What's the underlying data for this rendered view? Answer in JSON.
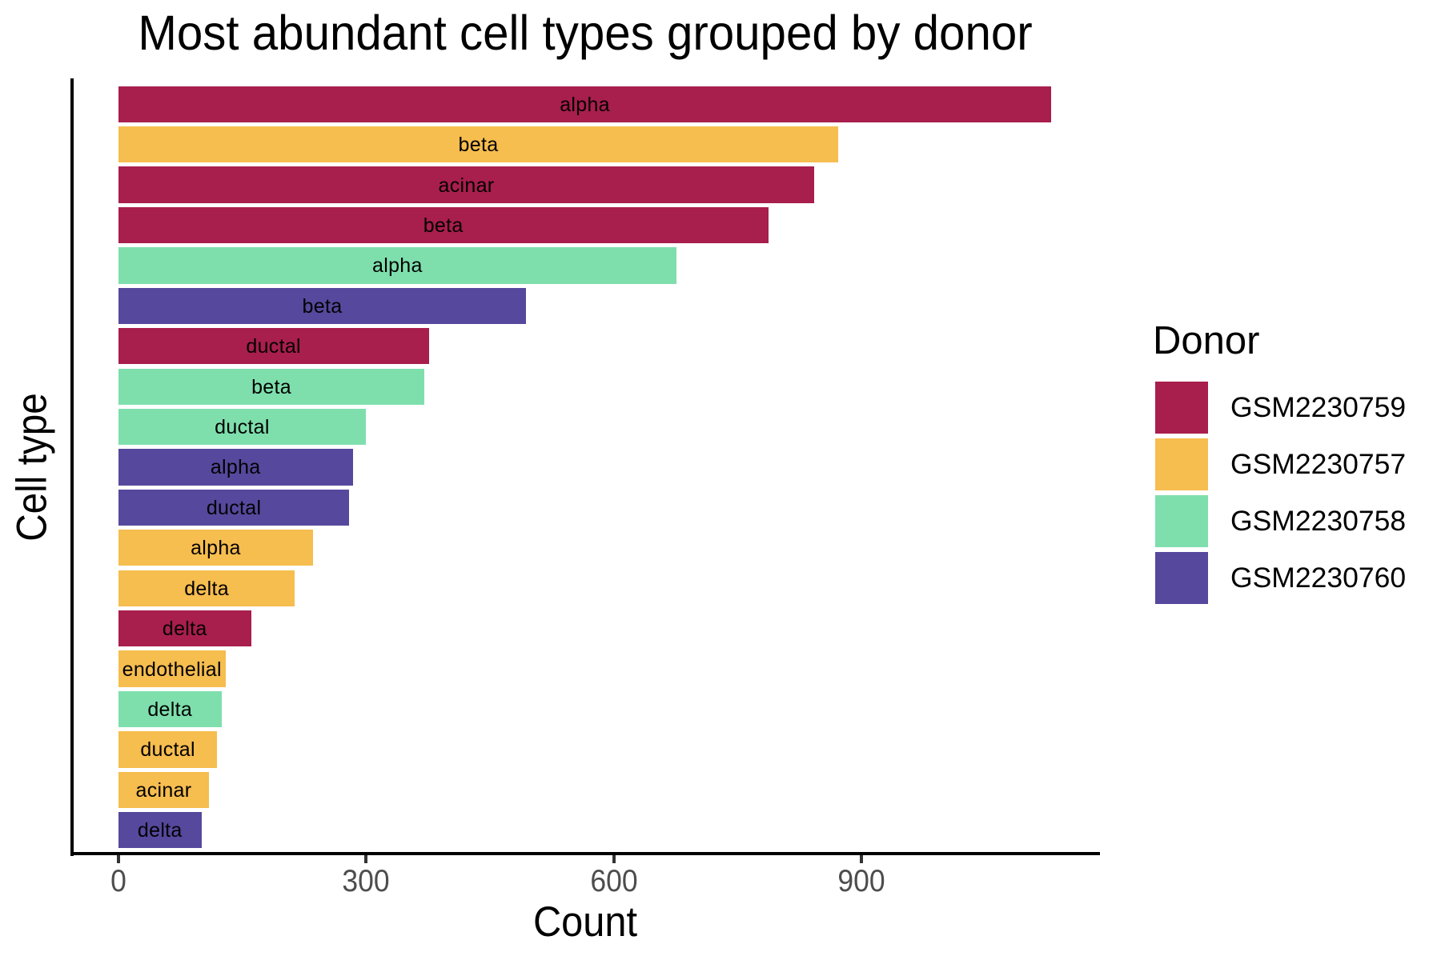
{
  "chart_data": {
    "type": "bar",
    "orientation": "horizontal",
    "title": "Most abundant cell types grouped by donor",
    "xlabel": "Count",
    "ylabel": "Cell type",
    "x_ticks": [
      0,
      300,
      600,
      900
    ],
    "xlim_data": [
      0,
      1130
    ],
    "grid": false,
    "legend_position": "right",
    "legend_title": "Donor",
    "bars": [
      {
        "cell_type": "alpha",
        "donor": "GSM2230759",
        "count": 1130
      },
      {
        "cell_type": "beta",
        "donor": "GSM2230757",
        "count": 872
      },
      {
        "cell_type": "acinar",
        "donor": "GSM2230759",
        "count": 843
      },
      {
        "cell_type": "beta",
        "donor": "GSM2230759",
        "count": 787
      },
      {
        "cell_type": "alpha",
        "donor": "GSM2230758",
        "count": 676
      },
      {
        "cell_type": "beta",
        "donor": "GSM2230760",
        "count": 494
      },
      {
        "cell_type": "ductal",
        "donor": "GSM2230759",
        "count": 376
      },
      {
        "cell_type": "beta",
        "donor": "GSM2230758",
        "count": 371
      },
      {
        "cell_type": "ductal",
        "donor": "GSM2230758",
        "count": 300
      },
      {
        "cell_type": "alpha",
        "donor": "GSM2230760",
        "count": 284
      },
      {
        "cell_type": "ductal",
        "donor": "GSM2230760",
        "count": 280
      },
      {
        "cell_type": "alpha",
        "donor": "GSM2230757",
        "count": 236
      },
      {
        "cell_type": "delta",
        "donor": "GSM2230757",
        "count": 214
      },
      {
        "cell_type": "delta",
        "donor": "GSM2230759",
        "count": 161
      },
      {
        "cell_type": "endothelial",
        "donor": "GSM2230757",
        "count": 130
      },
      {
        "cell_type": "delta",
        "donor": "GSM2230758",
        "count": 125
      },
      {
        "cell_type": "ductal",
        "donor": "GSM2230757",
        "count": 120
      },
      {
        "cell_type": "acinar",
        "donor": "GSM2230757",
        "count": 110
      },
      {
        "cell_type": "delta",
        "donor": "GSM2230760",
        "count": 101
      }
    ],
    "legend_entries": [
      {
        "donor": "GSM2230759",
        "color": "#a81e4d"
      },
      {
        "donor": "GSM2230757",
        "color": "#f6bd4f"
      },
      {
        "donor": "GSM2230758",
        "color": "#7edfad"
      },
      {
        "donor": "GSM2230760",
        "color": "#56489c"
      }
    ]
  },
  "colors": {
    "background": "#ffffff",
    "axis_line": "#000000",
    "tick_mark": "#333333",
    "tick_label": "#4d4d4d",
    "text": "#000000"
  }
}
